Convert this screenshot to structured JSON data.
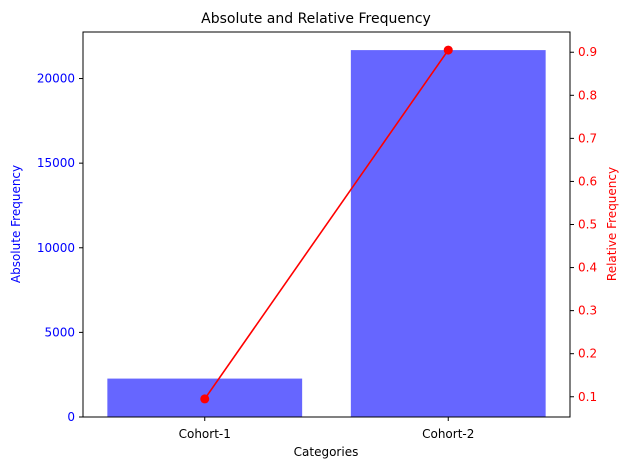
{
  "chart_data": {
    "type": "bar",
    "title": "Absolute and Relative Frequency",
    "xlabel": "Categories",
    "categories": [
      "Cohort-1",
      "Cohort-2"
    ],
    "series": [
      {
        "name": "Absolute Frequency",
        "type": "bar",
        "axis": "left",
        "color": "#6666ff",
        "values": [
          2270,
          21680
        ]
      },
      {
        "name": "Relative Frequency",
        "type": "line",
        "axis": "right",
        "color": "#ff0000",
        "values": [
          0.095,
          0.905
        ]
      }
    ],
    "y_left": {
      "label": "Absolute Frequency",
      "color": "#0000ff",
      "ylim": [
        0,
        22750
      ],
      "ticks": [
        0,
        5000,
        10000,
        15000,
        20000
      ]
    },
    "y_right": {
      "label": "Relative Frequency",
      "color": "#ff0000",
      "ylim": [
        0.053,
        0.947
      ],
      "ticks": [
        0.1,
        0.2,
        0.3,
        0.4,
        0.5,
        0.6,
        0.7,
        0.8,
        0.9
      ]
    },
    "grid": false,
    "legend": "none"
  }
}
